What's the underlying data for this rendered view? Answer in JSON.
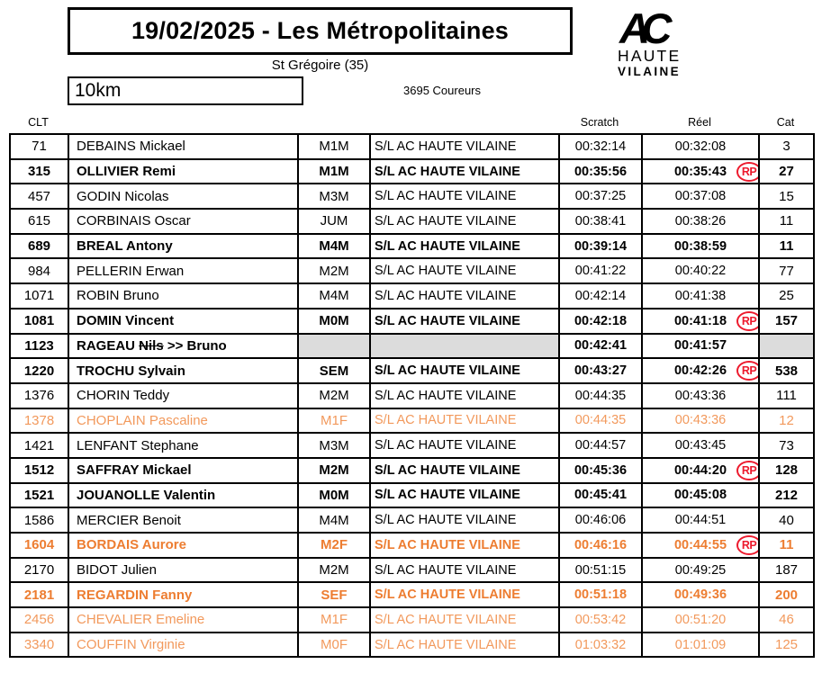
{
  "header": {
    "title": "19/02/2025 - Les Métropolitaines",
    "location": "St Grégoire (35)",
    "distance": "10km",
    "runners": "3695 Coureurs",
    "logo": {
      "ac": "AC",
      "line1": "HAUTE",
      "line2": "VILAINE"
    }
  },
  "table": {
    "columns": {
      "clt": "CLT",
      "scratch": "Scratch",
      "reel": "Réel",
      "cat": "Cat"
    },
    "rp_label": "RP",
    "rows": [
      {
        "clt": "71",
        "name": "DEBAINS Mickael",
        "cat": "M1M",
        "club": "S/L AC HAUTE VILAINE",
        "scratch": "00:32:14",
        "reel": "00:32:08",
        "rp": false,
        "rank": "3",
        "style": "normal",
        "gray": false
      },
      {
        "clt": "315",
        "name": "OLLIVIER Remi",
        "cat": "M1M",
        "club": "S/L AC HAUTE VILAINE",
        "scratch": "00:35:56",
        "reel": "00:35:43",
        "rp": true,
        "rank": "27",
        "style": "bold",
        "gray": false
      },
      {
        "clt": "457",
        "name": "GODIN Nicolas",
        "cat": "M3M",
        "club": "S/L AC HAUTE VILAINE",
        "scratch": "00:37:25",
        "reel": "00:37:08",
        "rp": false,
        "rank": "15",
        "style": "normal",
        "gray": false
      },
      {
        "clt": "615",
        "name": "CORBINAIS Oscar",
        "cat": "JUM",
        "club": "S/L AC HAUTE VILAINE",
        "scratch": "00:38:41",
        "reel": "00:38:26",
        "rp": false,
        "rank": "11",
        "style": "normal",
        "gray": false
      },
      {
        "clt": "689",
        "name": "BREAL Antony",
        "cat": "M4M",
        "club": "S/L AC HAUTE VILAINE",
        "scratch": "00:39:14",
        "reel": "00:38:59",
        "rp": false,
        "rank": "11",
        "style": "bold",
        "gray": false
      },
      {
        "clt": "984",
        "name": "PELLERIN Erwan",
        "cat": "M2M",
        "club": "S/L AC HAUTE VILAINE",
        "scratch": "00:41:22",
        "reel": "00:40:22",
        "rp": false,
        "rank": "77",
        "style": "normal",
        "gray": false
      },
      {
        "clt": "1071",
        "name": "ROBIN Bruno",
        "cat": "M4M",
        "club": "S/L AC HAUTE VILAINE",
        "scratch": "00:42:14",
        "reel": "00:41:38",
        "rp": false,
        "rank": "25",
        "style": "normal",
        "gray": false
      },
      {
        "clt": "1081",
        "name": "DOMIN Vincent",
        "cat": "M0M",
        "club": "S/L AC HAUTE VILAINE",
        "scratch": "00:42:18",
        "reel": "00:41:18",
        "rp": true,
        "rank": "157",
        "style": "bold",
        "gray": false
      },
      {
        "clt": "1123",
        "name": "RAGEAU Nils >>  Bruno",
        "struck": "Nils",
        "cat": "",
        "club": "",
        "scratch": "00:42:41",
        "reel": "00:41:57",
        "rp": false,
        "rank": "",
        "style": "bold",
        "gray": true
      },
      {
        "clt": "1220",
        "name": "TROCHU Sylvain",
        "cat": "SEM",
        "club": "S/L AC HAUTE VILAINE",
        "scratch": "00:43:27",
        "reel": "00:42:26",
        "rp": true,
        "rank": "538",
        "style": "bold",
        "gray": false
      },
      {
        "clt": "1376",
        "name": "CHORIN Teddy",
        "cat": "M2M",
        "club": "S/L AC HAUTE VILAINE",
        "scratch": "00:44:35",
        "reel": "00:43:36",
        "rp": false,
        "rank": "111",
        "style": "normal",
        "gray": false
      },
      {
        "clt": "1378",
        "name": "CHOPLAIN Pascaline",
        "cat": "M1F",
        "club": "S/L AC HAUTE VILAINE",
        "scratch": "00:44:35",
        "reel": "00:43:36",
        "rp": false,
        "rank": "12",
        "style": "orange",
        "gray": false
      },
      {
        "clt": "1421",
        "name": "LENFANT Stephane",
        "cat": "M3M",
        "club": "S/L AC HAUTE VILAINE",
        "scratch": "00:44:57",
        "reel": "00:43:45",
        "rp": false,
        "rank": "73",
        "style": "normal",
        "gray": false
      },
      {
        "clt": "1512",
        "name": "SAFFRAY Mickael",
        "cat": "M2M",
        "club": "S/L AC HAUTE VILAINE",
        "scratch": "00:45:36",
        "reel": "00:44:20",
        "rp": true,
        "rank": "128",
        "style": "bold",
        "gray": false
      },
      {
        "clt": "1521",
        "name": "JOUANOLLE Valentin",
        "cat": "M0M",
        "club": "S/L AC HAUTE VILAINE",
        "scratch": "00:45:41",
        "reel": "00:45:08",
        "rp": false,
        "rank": "212",
        "style": "bold",
        "gray": false
      },
      {
        "clt": "1586",
        "name": "MERCIER Benoit",
        "cat": "M4M",
        "club": "S/L AC HAUTE VILAINE",
        "scratch": "00:46:06",
        "reel": "00:44:51",
        "rp": false,
        "rank": "40",
        "style": "normal",
        "gray": false
      },
      {
        "clt": "1604",
        "name": "BORDAIS Aurore",
        "cat": "M2F",
        "club": "S/L AC HAUTE VILAINE",
        "scratch": "00:46:16",
        "reel": "00:44:55",
        "rp": true,
        "rank": "11",
        "style": "orangebold",
        "gray": false
      },
      {
        "clt": "2170",
        "name": "BIDOT Julien",
        "cat": "M2M",
        "club": "S/L AC HAUTE VILAINE",
        "scratch": "00:51:15",
        "reel": "00:49:25",
        "rp": false,
        "rank": "187",
        "style": "normal",
        "gray": false
      },
      {
        "clt": "2181",
        "name": "REGARDIN Fanny",
        "cat": "SEF",
        "club": "S/L AC HAUTE VILAINE",
        "scratch": "00:51:18",
        "reel": "00:49:36",
        "rp": false,
        "rank": "200",
        "style": "orangebold",
        "gray": false
      },
      {
        "clt": "2456",
        "name": "CHEVALIER Emeline",
        "cat": "M1F",
        "club": "S/L AC HAUTE VILAINE",
        "scratch": "00:53:42",
        "reel": "00:51:20",
        "rp": false,
        "rank": "46",
        "style": "orange",
        "gray": false
      },
      {
        "clt": "3340",
        "name": "COUFFIN Virginie",
        "cat": "M0F",
        "club": "S/L AC HAUTE VILAINE",
        "scratch": "01:03:32",
        "reel": "01:01:09",
        "rp": false,
        "rank": "125",
        "style": "orange",
        "gray": false
      }
    ]
  },
  "colors": {
    "orange_bold": "#ED7D31",
    "orange_light": "#F2995C",
    "rp_red": "#ED1B2E",
    "gray_cell": "#DCDCDC"
  }
}
